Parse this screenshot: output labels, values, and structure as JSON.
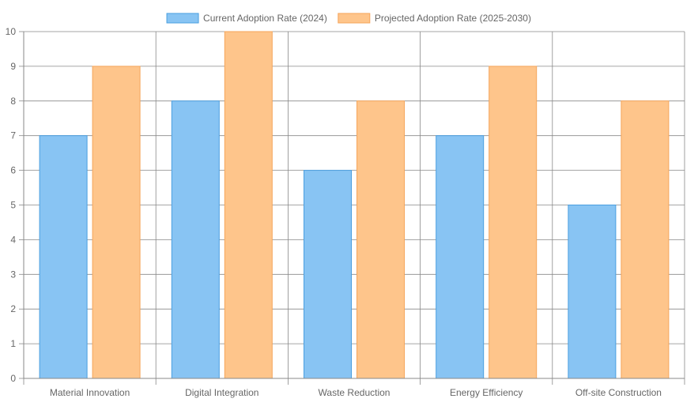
{
  "chart_data": {
    "type": "bar",
    "categories": [
      "Material Innovation",
      "Digital Integration",
      "Waste Reduction",
      "Energy Efficiency",
      "Off-site Construction"
    ],
    "series": [
      {
        "name": "Current Adoption Rate (2024)",
        "values": [
          7,
          8,
          6,
          7,
          5
        ],
        "fill": "#88c4f3",
        "stroke": "#4a9fe0"
      },
      {
        "name": "Projected Adoption Rate (2025-2030)",
        "values": [
          9,
          10,
          8,
          9,
          8
        ],
        "fill": "#fec58b",
        "stroke": "#f5a55a"
      }
    ],
    "ylim": [
      0,
      10
    ],
    "yticks": [
      0,
      1,
      2,
      3,
      4,
      5,
      6,
      7,
      8,
      9,
      10
    ],
    "grid": true,
    "legend_position": "top"
  }
}
